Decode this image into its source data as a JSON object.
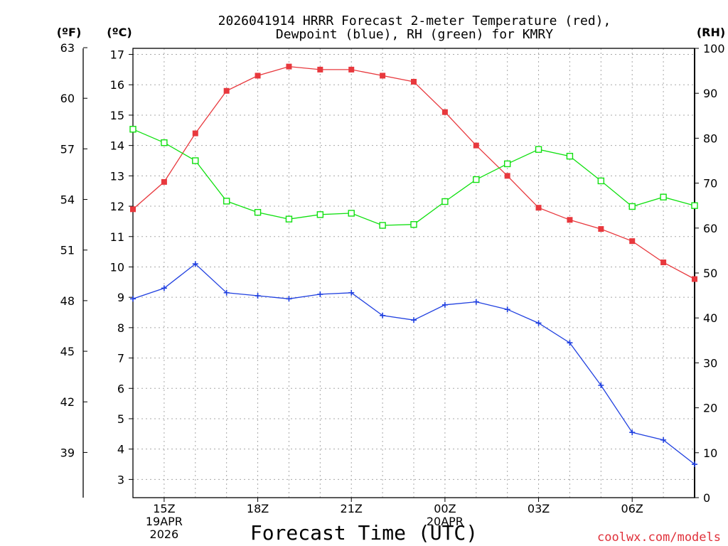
{
  "chart_data": {
    "type": "line",
    "title": [
      "2026041914 HRRR Forecast 2-meter Temperature (red),",
      "Dewpoint (blue), RH (green) for KMRY"
    ],
    "xlabel": "Forecast Time (UTC)",
    "credit": "coolwx.com/models",
    "units": {
      "fahrenheit": "(ºF)",
      "celsius": "(ºC)",
      "rh": "(RH)"
    },
    "x_hours": [
      0,
      1,
      2,
      3,
      4,
      5,
      6,
      7,
      8,
      9,
      10,
      11,
      12,
      13,
      14,
      15,
      16,
      17,
      18
    ],
    "x_ticks": [
      {
        "hour": 1,
        "lines": [
          "15Z",
          "19APR",
          "2026"
        ]
      },
      {
        "hour": 4,
        "lines": [
          "18Z"
        ]
      },
      {
        "hour": 7,
        "lines": [
          "21Z"
        ]
      },
      {
        "hour": 10,
        "lines": [
          "00Z",
          "20APR"
        ]
      },
      {
        "hour": 13,
        "lines": [
          "03Z"
        ]
      },
      {
        "hour": 16,
        "lines": [
          "06Z"
        ]
      }
    ],
    "celsius_axis": {
      "ticks": [
        "3",
        "4",
        "5",
        "6",
        "7",
        "8",
        "9",
        "10",
        "11",
        "12",
        "13",
        "14",
        "15",
        "16",
        "17"
      ],
      "ylim": [
        2.4,
        17.2
      ]
    },
    "fahrenheit_axis": {
      "ticks": [
        "39",
        "42",
        "45",
        "48",
        "51",
        "54",
        "57",
        "60",
        "63"
      ],
      "ylim": [
        36.32,
        62.96
      ]
    },
    "rh_axis": {
      "ticks": [
        "0",
        "10",
        "20",
        "30",
        "40",
        "50",
        "60",
        "70",
        "80",
        "90",
        "100"
      ],
      "ylim": [
        0,
        100
      ]
    },
    "series": [
      {
        "name": "Temperature",
        "unit": "C",
        "color": "#e8383d",
        "marker": "filled-square",
        "values": [
          11.9,
          12.8,
          14.4,
          15.8,
          16.3,
          16.6,
          16.5,
          16.5,
          16.3,
          16.1,
          15.1,
          14.0,
          13.0,
          11.95,
          11.55,
          11.25,
          10.85,
          10.15,
          9.6
        ]
      },
      {
        "name": "Dewpoint",
        "unit": "C",
        "color": "#2040e0",
        "marker": "plus",
        "values": [
          8.95,
          9.3,
          10.1,
          9.15,
          9.05,
          8.95,
          9.1,
          9.15,
          8.4,
          8.25,
          8.75,
          8.85,
          8.6,
          8.15,
          7.5,
          6.1,
          4.55,
          4.3,
          3.5
        ]
      },
      {
        "name": "RH",
        "unit": "%",
        "color": "#10e010",
        "marker": "open-square",
        "values": [
          82,
          79,
          75,
          66,
          63.5,
          62,
          63,
          63.3,
          60.6,
          60.8,
          65.9,
          70.8,
          74.3,
          77.5,
          76,
          70.5,
          64.8,
          66.9,
          65
        ]
      }
    ]
  }
}
